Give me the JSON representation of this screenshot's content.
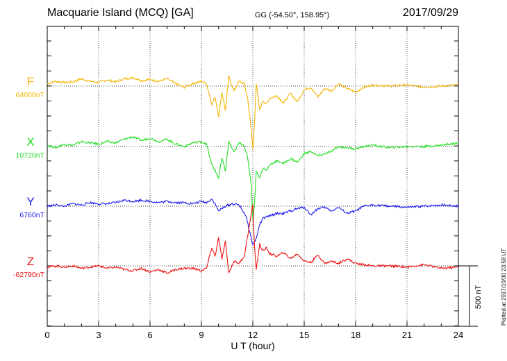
{
  "header": {
    "title": "Macquarie Island (MCQ)  [GA]",
    "coords": "GG (-54.50°, 158.95°)",
    "date": "2017/09/29"
  },
  "footer": {
    "plotted": "Plotted at 2017/10/30 23:58 UT",
    "scale_label": "500 nT"
  },
  "chart_data": {
    "type": "line",
    "title": "Macquarie Island (MCQ)  [GA]",
    "xlabel": "U T (hour)",
    "ylabel": "",
    "xlim": [
      0,
      24
    ],
    "xticks": [
      "0",
      "3",
      "6",
      "9",
      "12",
      "15",
      "18",
      "21",
      "24"
    ],
    "grid": true,
    "scale_bar_nT": 500,
    "series": [
      {
        "name": "F",
        "baseline_label": "64060nT",
        "baseline_nT": 64060,
        "color": "#f5b400",
        "x": [
          0,
          0.5,
          1,
          1.5,
          2,
          2.5,
          3,
          3.5,
          4,
          4.5,
          5,
          5.5,
          6,
          6.5,
          7,
          7.5,
          8,
          8.5,
          9,
          9.3,
          9.6,
          9.8,
          10,
          10.2,
          10.4,
          10.6,
          10.9,
          11.2,
          11.5,
          11.7,
          11.9,
          12.0,
          12.1,
          12.2,
          12.4,
          12.6,
          12.8,
          13,
          13.4,
          13.8,
          14.2,
          14.6,
          15,
          15.4,
          15.8,
          16.2,
          16.6,
          17,
          17.5,
          18,
          18.5,
          19,
          20,
          21,
          22,
          23,
          24
        ],
        "y": [
          20,
          40,
          30,
          35,
          60,
          40,
          30,
          50,
          35,
          60,
          70,
          45,
          55,
          40,
          60,
          20,
          -10,
          20,
          40,
          20,
          -150,
          -90,
          -250,
          -50,
          -200,
          80,
          -40,
          40,
          20,
          -100,
          -350,
          -520,
          -300,
          20,
          -200,
          -120,
          -150,
          -100,
          -80,
          -140,
          -60,
          -130,
          -30,
          -10,
          -90,
          -20,
          -40,
          20,
          -20,
          -50,
          -10,
          10,
          0,
          10,
          -10,
          0,
          10
        ]
      },
      {
        "name": "X",
        "baseline_label": "10720nT",
        "baseline_nT": 10720,
        "color": "#22dd22",
        "x": [
          0,
          0.5,
          1,
          1.5,
          2,
          2.5,
          3,
          3.5,
          4,
          4.5,
          5,
          5.5,
          6,
          6.5,
          7,
          7.5,
          8,
          8.5,
          9,
          9.3,
          9.6,
          9.8,
          10,
          10.2,
          10.4,
          10.6,
          10.9,
          11.2,
          11.5,
          11.7,
          11.9,
          12.0,
          12.1,
          12.2,
          12.4,
          12.6,
          12.8,
          13,
          13.4,
          13.8,
          14.2,
          14.6,
          15,
          15.4,
          15.8,
          16.2,
          16.6,
          17,
          17.5,
          18,
          18.5,
          19,
          20,
          21,
          22,
          23,
          24
        ],
        "y": [
          10,
          -10,
          20,
          10,
          40,
          30,
          20,
          40,
          30,
          60,
          80,
          50,
          70,
          40,
          60,
          20,
          0,
          30,
          40,
          20,
          -150,
          -200,
          -260,
          -100,
          -200,
          40,
          -50,
          30,
          10,
          -100,
          -300,
          -600,
          -480,
          -200,
          -260,
          -180,
          -200,
          -150,
          -120,
          -140,
          -100,
          -130,
          -60,
          -40,
          -80,
          -60,
          -40,
          0,
          -10,
          -20,
          0,
          10,
          -10,
          0,
          0,
          10,
          30
        ]
      },
      {
        "name": "Y",
        "baseline_label": "6760nT",
        "baseline_nT": 6760,
        "color": "#1a1aee",
        "x": [
          0,
          0.5,
          1,
          1.5,
          2,
          2.5,
          3,
          3.5,
          4,
          4.5,
          5,
          5.5,
          6,
          6.5,
          7,
          7.5,
          8,
          8.5,
          9,
          9.3,
          9.6,
          9.8,
          10,
          10.4,
          10.8,
          11.2,
          11.6,
          11.8,
          12.0,
          12.2,
          12.4,
          12.6,
          13,
          13.4,
          13.8,
          14.2,
          14.6,
          15,
          15.4,
          15.8,
          16.2,
          16.6,
          17,
          17.5,
          18,
          18.5,
          19,
          20,
          21,
          22,
          23,
          24
        ],
        "y": [
          0,
          10,
          0,
          20,
          10,
          30,
          20,
          20,
          30,
          50,
          40,
          50,
          40,
          30,
          40,
          30,
          30,
          20,
          40,
          30,
          60,
          20,
          -40,
          0,
          20,
          10,
          -80,
          -200,
          -320,
          -270,
          -150,
          -100,
          -80,
          -60,
          -60,
          -40,
          -20,
          -10,
          -70,
          -20,
          -10,
          -40,
          -10,
          -60,
          -40,
          0,
          10,
          0,
          -10,
          0,
          10,
          0
        ]
      },
      {
        "name": "Z",
        "baseline_label": "-62790nT",
        "baseline_nT": -62790,
        "color": "#ee1111",
        "x": [
          0,
          0.5,
          1,
          1.5,
          2,
          2.5,
          3,
          3.5,
          4,
          4.5,
          5,
          5.5,
          6,
          6.5,
          7,
          7.5,
          8,
          8.5,
          9,
          9.3,
          9.6,
          9.8,
          10,
          10.2,
          10.4,
          10.6,
          10.9,
          11.2,
          11.5,
          11.7,
          11.9,
          12.0,
          12.1,
          12.2,
          12.4,
          12.6,
          12.8,
          13,
          13.4,
          13.8,
          14.2,
          14.6,
          15,
          15.4,
          15.8,
          16.2,
          16.6,
          17,
          17.5,
          18,
          18.5,
          19,
          20,
          21,
          22,
          23,
          24
        ],
        "y": [
          -10,
          0,
          -10,
          0,
          -20,
          -10,
          0,
          -20,
          -10,
          -30,
          -40,
          -20,
          -50,
          -30,
          -60,
          -30,
          -20,
          -20,
          -40,
          -20,
          150,
          80,
          230,
          60,
          200,
          -60,
          40,
          20,
          80,
          250,
          420,
          500,
          160,
          -30,
          180,
          120,
          150,
          100,
          80,
          110,
          60,
          100,
          40,
          30,
          90,
          20,
          40,
          20,
          60,
          20,
          10,
          0,
          0,
          -10,
          10,
          -20,
          -10
        ]
      }
    ]
  }
}
